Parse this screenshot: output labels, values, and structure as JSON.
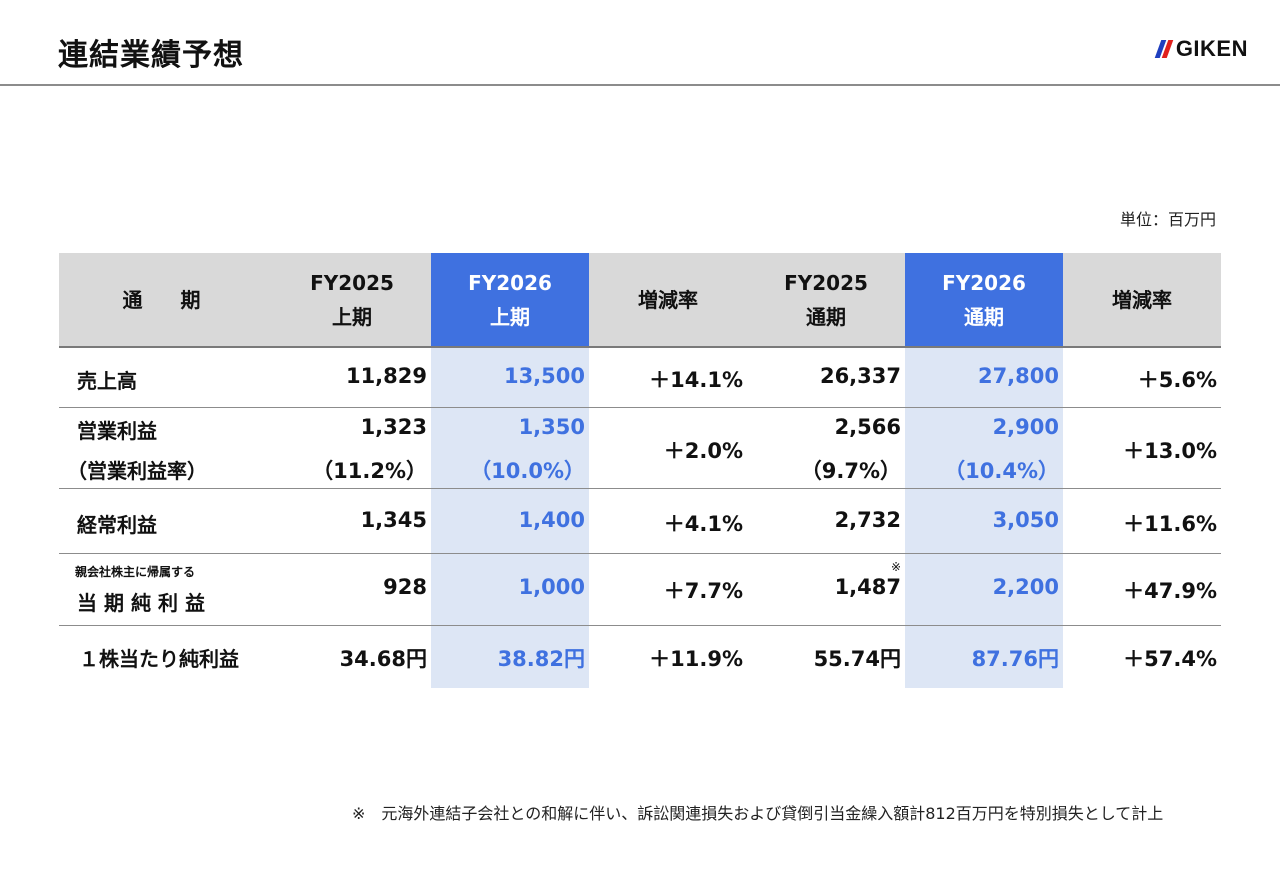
{
  "header": {
    "title": "連結業績予想",
    "logo_text": "GIKEN"
  },
  "unit_label": "単位：百万円",
  "table": {
    "columns": [
      {
        "line1": "通　期",
        "line2": ""
      },
      {
        "line1": "FY2025",
        "line2": "上期"
      },
      {
        "line1": "FY2026",
        "line2": "上期"
      },
      {
        "line1": "増減率",
        "line2": ""
      },
      {
        "line1": "FY2025",
        "line2": "通期"
      },
      {
        "line1": "FY2026",
        "line2": "通期"
      },
      {
        "line1": "増減率",
        "line2": ""
      }
    ],
    "rows": [
      {
        "label": "売上高",
        "fy2025_h1": "11,829",
        "fy2026_h1": "13,500",
        "h1_change": "＋14.1%",
        "fy2025_full": "26,337",
        "fy2026_full": "27,800",
        "full_change": "＋5.6%"
      },
      {
        "label": "営業利益",
        "sublabel": "（営業利益率）",
        "fy2025_h1": "1,323",
        "fy2025_h1_sub": "（11.2%）",
        "fy2026_h1": "1,350",
        "fy2026_h1_sub": "（10.0%）",
        "h1_change": "＋2.0%",
        "fy2025_full": "2,566",
        "fy2025_full_sub": "（9.7%）",
        "fy2026_full": "2,900",
        "fy2026_full_sub": "（10.4%）",
        "full_change": "＋13.0%"
      },
      {
        "label": "経常利益",
        "fy2025_h1": "1,345",
        "fy2026_h1": "1,400",
        "h1_change": "＋4.1%",
        "fy2025_full": "2,732",
        "fy2026_full": "3,050",
        "full_change": "＋11.6%"
      },
      {
        "small_label": "親会社株主に帰属する",
        "label": "当期純利益",
        "fy2025_h1": "928",
        "fy2026_h1": "1,000",
        "h1_change": "＋7.7%",
        "fy2025_full": "1,487",
        "fy2025_full_note": "※",
        "fy2026_full": "2,200",
        "full_change": "＋47.9%"
      },
      {
        "label": "１株当たり純利益",
        "fy2025_h1": "34.68円",
        "fy2026_h1": "38.82円",
        "h1_change": "＋11.9%",
        "fy2025_full": "55.74円",
        "fy2026_full": "87.76円",
        "full_change": "＋57.4%"
      }
    ]
  },
  "footnote": "※　元海外連結子会社との和解に伴い、訴訟関連損失および貸倒引当金繰入額計812百万円を特別損失として計上",
  "colors": {
    "accent_blue": "#3f71e0",
    "highlight_column": "#dde6f5",
    "header_grey": "#d9d9d9",
    "logo_blue": "#1f3fbf",
    "logo_red": "#e0201c"
  }
}
